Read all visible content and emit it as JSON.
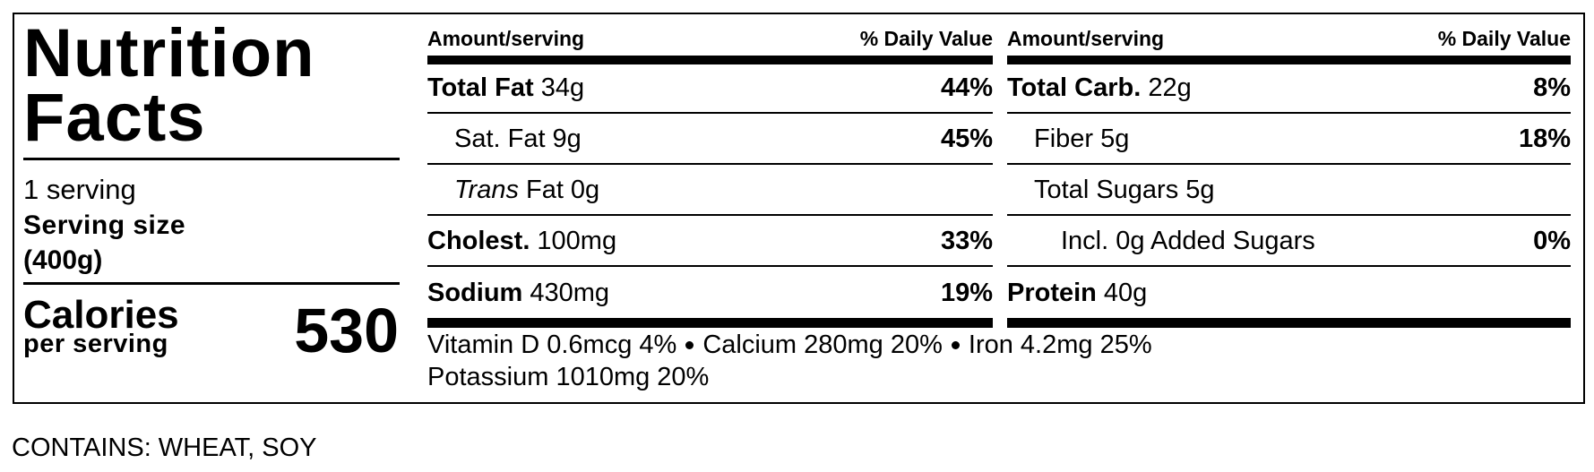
{
  "title": "Nutrition Facts",
  "servings": "1 serving",
  "serving_size_label": "Serving size",
  "serving_size": "(400g)",
  "calories_label": "Calories",
  "calories_sub": "per serving",
  "calories": 530,
  "columns": [
    {
      "amount_header": "Amount/serving",
      "dv_header": "% Daily Value",
      "rows": [
        {
          "name": "Total Fat",
          "amount": "34g",
          "dv": "44%"
        },
        {
          "name": "Sat. Fat",
          "amount": "9g",
          "dv": "45%"
        },
        {
          "name_italic": "Trans",
          "name": "Fat",
          "amount": "0g"
        },
        {
          "name": "Cholest.",
          "amount": "100mg",
          "dv": "33%"
        },
        {
          "name": "Sodium",
          "amount": "430mg",
          "dv": "19%"
        }
      ]
    },
    {
      "amount_header": "Amount/serving",
      "dv_header": "% Daily Value",
      "rows": [
        {
          "name": "Total Carb.",
          "amount": "22g",
          "dv": "8%"
        },
        {
          "name": "Fiber",
          "amount": "5g",
          "dv": "18%"
        },
        {
          "name": "Total Sugars",
          "amount": "5g"
        },
        {
          "name": "Incl. 0g Added Sugars",
          "dv": "0%"
        },
        {
          "name": "Protein",
          "amount": "40g"
        }
      ]
    }
  ],
  "vitamins": [
    "Vitamin D 0.6mcg 4%",
    "Calcium 280mg 20%",
    "Iron 4.2mg 25%",
    "Potassium 1010mg 20%"
  ],
  "allergens": "CONTAINS: WHEAT, SOY"
}
